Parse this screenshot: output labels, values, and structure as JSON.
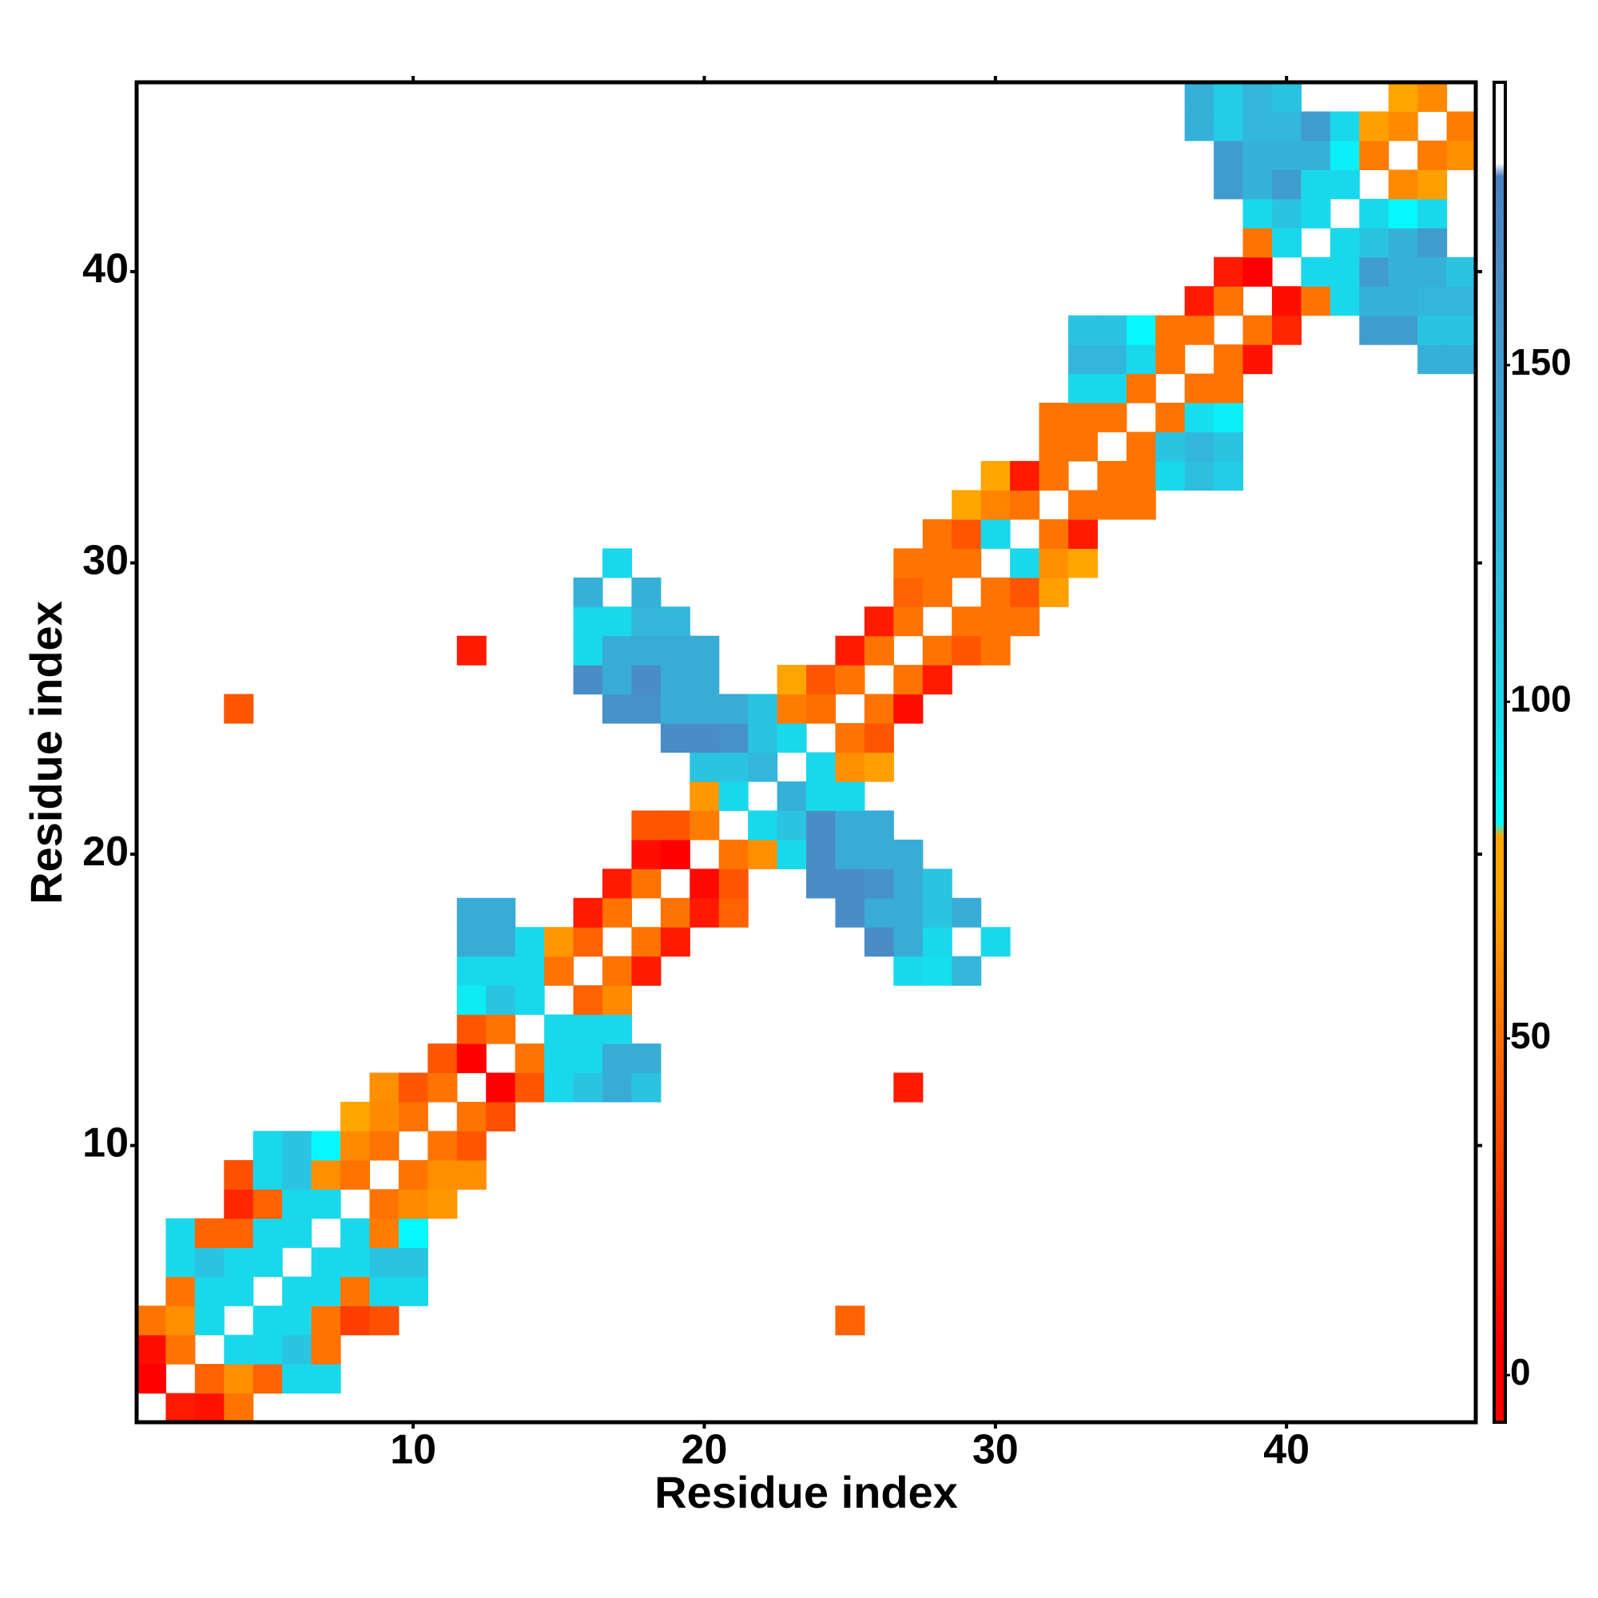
{
  "chart_data": {
    "type": "heatmap",
    "xlabel": "Residue index",
    "ylabel": "Residue index",
    "xlim": [
      0.5,
      46.5
    ],
    "ylim": [
      0.5,
      46.5
    ],
    "xticks": [
      10,
      20,
      30,
      40
    ],
    "yticks": [
      10,
      20,
      30,
      40
    ],
    "colorbar_lim": [
      -7,
      192
    ],
    "colorbar_ticks": [
      0,
      50,
      100,
      150
    ],
    "colorscale": [
      [
        -7,
        "#ff0000"
      ],
      [
        5,
        "#ff0000"
      ],
      [
        15,
        "#ff1a00"
      ],
      [
        40,
        "#ff5500"
      ],
      [
        52,
        "#ff7400"
      ],
      [
        70,
        "#ffa500"
      ],
      [
        80,
        "#ffa500"
      ],
      [
        82,
        "#00ffff"
      ],
      [
        98,
        "#1ad8eb"
      ],
      [
        112,
        "#2ac4e2"
      ],
      [
        135,
        "#38acd6"
      ],
      [
        165,
        "#4a8cc6"
      ],
      [
        178,
        "#4a7fbf"
      ],
      [
        180,
        "#ffffff"
      ],
      [
        192,
        "#ffffff"
      ]
    ],
    "cells": [
      [
        2,
        1,
        15
      ],
      [
        3,
        1,
        12
      ],
      [
        4,
        1,
        52
      ],
      [
        1,
        2,
        5
      ],
      [
        3,
        2,
        45
      ],
      [
        4,
        2,
        62
      ],
      [
        5,
        2,
        45
      ],
      [
        6,
        2,
        98
      ],
      [
        7,
        2,
        98
      ],
      [
        1,
        3,
        10
      ],
      [
        2,
        3,
        52
      ],
      [
        4,
        3,
        98
      ],
      [
        5,
        3,
        98
      ],
      [
        6,
        3,
        112
      ],
      [
        7,
        3,
        52
      ],
      [
        1,
        4,
        52
      ],
      [
        2,
        4,
        62
      ],
      [
        3,
        4,
        98
      ],
      [
        5,
        4,
        98
      ],
      [
        6,
        4,
        98
      ],
      [
        7,
        4,
        52
      ],
      [
        8,
        4,
        30
      ],
      [
        9,
        4,
        38
      ],
      [
        25,
        4,
        45
      ],
      [
        2,
        5,
        52
      ],
      [
        3,
        5,
        98
      ],
      [
        4,
        5,
        98
      ],
      [
        6,
        5,
        98
      ],
      [
        7,
        5,
        98
      ],
      [
        8,
        5,
        52
      ],
      [
        9,
        5,
        98
      ],
      [
        10,
        5,
        98
      ],
      [
        2,
        6,
        98
      ],
      [
        3,
        6,
        112
      ],
      [
        4,
        6,
        98
      ],
      [
        5,
        6,
        98
      ],
      [
        7,
        6,
        98
      ],
      [
        8,
        6,
        98
      ],
      [
        9,
        6,
        112
      ],
      [
        10,
        6,
        112
      ],
      [
        2,
        7,
        98
      ],
      [
        3,
        7,
        45
      ],
      [
        4,
        7,
        45
      ],
      [
        5,
        7,
        98
      ],
      [
        6,
        7,
        98
      ],
      [
        8,
        7,
        98
      ],
      [
        9,
        7,
        55
      ],
      [
        10,
        7,
        85
      ],
      [
        4,
        8,
        20
      ],
      [
        5,
        8,
        45
      ],
      [
        6,
        8,
        98
      ],
      [
        7,
        8,
        98
      ],
      [
        9,
        8,
        52
      ],
      [
        10,
        8,
        60
      ],
      [
        11,
        8,
        65
      ],
      [
        4,
        9,
        38
      ],
      [
        5,
        9,
        98
      ],
      [
        6,
        9,
        112
      ],
      [
        7,
        9,
        62
      ],
      [
        8,
        9,
        52
      ],
      [
        10,
        9,
        52
      ],
      [
        11,
        9,
        62
      ],
      [
        12,
        9,
        62
      ],
      [
        5,
        10,
        98
      ],
      [
        6,
        10,
        112
      ],
      [
        7,
        10,
        85
      ],
      [
        8,
        10,
        60
      ],
      [
        9,
        10,
        52
      ],
      [
        11,
        10,
        52
      ],
      [
        12,
        10,
        40
      ],
      [
        8,
        11,
        70
      ],
      [
        9,
        11,
        60
      ],
      [
        10,
        11,
        52
      ],
      [
        12,
        11,
        52
      ],
      [
        13,
        11,
        38
      ],
      [
        9,
        12,
        62
      ],
      [
        10,
        12,
        40
      ],
      [
        11,
        12,
        52
      ],
      [
        13,
        12,
        5
      ],
      [
        14,
        12,
        40
      ],
      [
        15,
        12,
        98
      ],
      [
        16,
        12,
        112
      ],
      [
        17,
        12,
        135
      ],
      [
        18,
        12,
        112
      ],
      [
        27,
        12,
        15
      ],
      [
        11,
        13,
        40
      ],
      [
        12,
        13,
        5
      ],
      [
        14,
        13,
        52
      ],
      [
        15,
        13,
        98
      ],
      [
        16,
        13,
        98
      ],
      [
        17,
        13,
        135
      ],
      [
        18,
        13,
        135
      ],
      [
        12,
        14,
        40
      ],
      [
        13,
        14,
        52
      ],
      [
        15,
        14,
        98
      ],
      [
        16,
        14,
        98
      ],
      [
        17,
        14,
        98
      ],
      [
        12,
        15,
        90
      ],
      [
        13,
        15,
        112
      ],
      [
        14,
        15,
        98
      ],
      [
        16,
        15,
        45
      ],
      [
        17,
        15,
        60
      ],
      [
        12,
        16,
        98
      ],
      [
        13,
        16,
        98
      ],
      [
        14,
        16,
        98
      ],
      [
        15,
        16,
        52
      ],
      [
        17,
        16,
        52
      ],
      [
        18,
        16,
        15
      ],
      [
        27,
        16,
        98
      ],
      [
        28,
        16,
        95
      ],
      [
        29,
        16,
        125
      ],
      [
        12,
        17,
        135
      ],
      [
        13,
        17,
        135
      ],
      [
        14,
        17,
        98
      ],
      [
        15,
        17,
        65
      ],
      [
        16,
        17,
        45
      ],
      [
        18,
        17,
        52
      ],
      [
        19,
        17,
        15
      ],
      [
        26,
        17,
        165
      ],
      [
        27,
        17,
        135
      ],
      [
        28,
        17,
        98
      ],
      [
        30,
        17,
        98
      ],
      [
        12,
        18,
        135
      ],
      [
        13,
        18,
        135
      ],
      [
        16,
        18,
        15
      ],
      [
        17,
        18,
        52
      ],
      [
        19,
        18,
        52
      ],
      [
        20,
        18,
        15
      ],
      [
        21,
        18,
        45
      ],
      [
        25,
        18,
        165
      ],
      [
        26,
        18,
        135
      ],
      [
        27,
        18,
        135
      ],
      [
        28,
        18,
        112
      ],
      [
        29,
        18,
        135
      ],
      [
        17,
        19,
        15
      ],
      [
        18,
        19,
        52
      ],
      [
        20,
        19,
        8
      ],
      [
        21,
        19,
        40
      ],
      [
        24,
        19,
        165
      ],
      [
        25,
        19,
        165
      ],
      [
        26,
        19,
        160
      ],
      [
        27,
        19,
        135
      ],
      [
        28,
        19,
        112
      ],
      [
        18,
        20,
        10
      ],
      [
        19,
        20,
        5
      ],
      [
        21,
        20,
        52
      ],
      [
        22,
        20,
        62
      ],
      [
        23,
        20,
        98
      ],
      [
        24,
        20,
        165
      ],
      [
        25,
        20,
        135
      ],
      [
        26,
        20,
        135
      ],
      [
        27,
        20,
        135
      ],
      [
        18,
        21,
        40
      ],
      [
        19,
        21,
        40
      ],
      [
        20,
        21,
        55
      ],
      [
        22,
        21,
        98
      ],
      [
        23,
        21,
        112
      ],
      [
        24,
        21,
        165
      ],
      [
        25,
        21,
        135
      ],
      [
        26,
        21,
        135
      ],
      [
        20,
        22,
        65
      ],
      [
        21,
        22,
        98
      ],
      [
        23,
        22,
        130
      ],
      [
        24,
        22,
        98
      ],
      [
        25,
        22,
        98
      ],
      [
        20,
        23,
        112
      ],
      [
        21,
        23,
        112
      ],
      [
        22,
        23,
        125
      ],
      [
        24,
        23,
        98
      ],
      [
        25,
        23,
        62
      ],
      [
        26,
        23,
        68
      ],
      [
        19,
        24,
        165
      ],
      [
        20,
        24,
        165
      ],
      [
        21,
        24,
        160
      ],
      [
        22,
        24,
        112
      ],
      [
        23,
        24,
        98
      ],
      [
        25,
        24,
        52
      ],
      [
        26,
        24,
        40
      ],
      [
        4,
        25,
        40
      ],
      [
        17,
        25,
        160
      ],
      [
        18,
        25,
        160
      ],
      [
        19,
        25,
        135
      ],
      [
        20,
        25,
        135
      ],
      [
        21,
        25,
        135
      ],
      [
        22,
        25,
        112
      ],
      [
        23,
        25,
        55
      ],
      [
        24,
        25,
        50
      ],
      [
        26,
        25,
        52
      ],
      [
        27,
        25,
        10
      ],
      [
        16,
        26,
        165
      ],
      [
        17,
        26,
        135
      ],
      [
        18,
        26,
        165
      ],
      [
        19,
        26,
        135
      ],
      [
        20,
        26,
        135
      ],
      [
        23,
        26,
        70
      ],
      [
        24,
        26,
        40
      ],
      [
        25,
        26,
        52
      ],
      [
        27,
        26,
        52
      ],
      [
        28,
        26,
        15
      ],
      [
        12,
        27,
        15
      ],
      [
        16,
        27,
        98
      ],
      [
        17,
        27,
        135
      ],
      [
        18,
        27,
        135
      ],
      [
        19,
        27,
        135
      ],
      [
        20,
        27,
        135
      ],
      [
        25,
        27,
        15
      ],
      [
        26,
        27,
        52
      ],
      [
        28,
        27,
        52
      ],
      [
        29,
        27,
        40
      ],
      [
        30,
        27,
        52
      ],
      [
        16,
        28,
        98
      ],
      [
        17,
        28,
        98
      ],
      [
        18,
        28,
        125
      ],
      [
        19,
        28,
        125
      ],
      [
        26,
        28,
        15
      ],
      [
        27,
        28,
        52
      ],
      [
        29,
        28,
        52
      ],
      [
        30,
        28,
        52
      ],
      [
        31,
        28,
        52
      ],
      [
        16,
        29,
        130
      ],
      [
        18,
        29,
        130
      ],
      [
        27,
        29,
        45
      ],
      [
        28,
        29,
        52
      ],
      [
        30,
        29,
        52
      ],
      [
        31,
        29,
        40
      ],
      [
        32,
        29,
        68
      ],
      [
        17,
        30,
        98
      ],
      [
        27,
        30,
        52
      ],
      [
        28,
        30,
        52
      ],
      [
        29,
        30,
        52
      ],
      [
        31,
        30,
        98
      ],
      [
        32,
        30,
        62
      ],
      [
        33,
        30,
        70
      ],
      [
        28,
        31,
        52
      ],
      [
        29,
        31,
        40
      ],
      [
        30,
        31,
        98
      ],
      [
        32,
        31,
        52
      ],
      [
        33,
        31,
        15
      ],
      [
        29,
        32,
        70
      ],
      [
        30,
        32,
        58
      ],
      [
        31,
        32,
        52
      ],
      [
        33,
        32,
        52
      ],
      [
        34,
        32,
        52
      ],
      [
        35,
        32,
        52
      ],
      [
        30,
        33,
        70
      ],
      [
        31,
        33,
        15
      ],
      [
        32,
        33,
        52
      ],
      [
        34,
        33,
        52
      ],
      [
        35,
        33,
        52
      ],
      [
        36,
        33,
        98
      ],
      [
        37,
        33,
        118
      ],
      [
        38,
        33,
        105
      ],
      [
        32,
        34,
        52
      ],
      [
        33,
        34,
        52
      ],
      [
        35,
        34,
        52
      ],
      [
        36,
        34,
        112
      ],
      [
        37,
        34,
        125
      ],
      [
        38,
        34,
        112
      ],
      [
        32,
        35,
        52
      ],
      [
        33,
        35,
        52
      ],
      [
        34,
        35,
        52
      ],
      [
        36,
        35,
        52
      ],
      [
        37,
        35,
        95
      ],
      [
        38,
        35,
        88
      ],
      [
        33,
        36,
        98
      ],
      [
        34,
        36,
        98
      ],
      [
        35,
        36,
        52
      ],
      [
        37,
        36,
        52
      ],
      [
        38,
        36,
        52
      ],
      [
        33,
        37,
        125
      ],
      [
        34,
        37,
        125
      ],
      [
        35,
        37,
        98
      ],
      [
        36,
        37,
        52
      ],
      [
        38,
        37,
        52
      ],
      [
        39,
        37,
        12
      ],
      [
        45,
        37,
        130
      ],
      [
        46,
        37,
        130
      ],
      [
        33,
        38,
        112
      ],
      [
        34,
        38,
        112
      ],
      [
        35,
        38,
        85
      ],
      [
        36,
        38,
        52
      ],
      [
        37,
        38,
        52
      ],
      [
        39,
        38,
        52
      ],
      [
        40,
        38,
        20
      ],
      [
        43,
        38,
        150
      ],
      [
        44,
        38,
        150
      ],
      [
        45,
        38,
        112
      ],
      [
        46,
        38,
        112
      ],
      [
        37,
        39,
        15
      ],
      [
        38,
        39,
        52
      ],
      [
        40,
        39,
        10
      ],
      [
        41,
        39,
        52
      ],
      [
        42,
        39,
        98
      ],
      [
        43,
        39,
        130
      ],
      [
        44,
        39,
        130
      ],
      [
        45,
        39,
        125
      ],
      [
        46,
        39,
        125
      ],
      [
        38,
        40,
        15
      ],
      [
        39,
        40,
        5
      ],
      [
        41,
        40,
        98
      ],
      [
        42,
        40,
        98
      ],
      [
        43,
        40,
        150
      ],
      [
        44,
        40,
        130
      ],
      [
        45,
        40,
        130
      ],
      [
        46,
        40,
        112
      ],
      [
        39,
        41,
        52
      ],
      [
        40,
        41,
        98
      ],
      [
        42,
        41,
        98
      ],
      [
        43,
        41,
        112
      ],
      [
        44,
        41,
        130
      ],
      [
        45,
        41,
        150
      ],
      [
        39,
        42,
        98
      ],
      [
        40,
        42,
        112
      ],
      [
        41,
        42,
        98
      ],
      [
        43,
        42,
        98
      ],
      [
        44,
        42,
        85
      ],
      [
        45,
        42,
        98
      ],
      [
        38,
        43,
        150
      ],
      [
        39,
        43,
        130
      ],
      [
        40,
        43,
        150
      ],
      [
        41,
        43,
        98
      ],
      [
        42,
        43,
        98
      ],
      [
        44,
        43,
        60
      ],
      [
        45,
        43,
        68
      ],
      [
        38,
        44,
        150
      ],
      [
        39,
        44,
        130
      ],
      [
        40,
        44,
        130
      ],
      [
        41,
        44,
        130
      ],
      [
        42,
        44,
        88
      ],
      [
        43,
        44,
        55
      ],
      [
        45,
        44,
        55
      ],
      [
        46,
        44,
        62
      ],
      [
        37,
        45,
        130
      ],
      [
        38,
        45,
        105
      ],
      [
        39,
        45,
        125
      ],
      [
        40,
        45,
        125
      ],
      [
        41,
        45,
        150
      ],
      [
        42,
        45,
        98
      ],
      [
        43,
        45,
        68
      ],
      [
        44,
        45,
        60
      ],
      [
        46,
        45,
        55
      ],
      [
        37,
        46,
        130
      ],
      [
        38,
        46,
        105
      ],
      [
        39,
        46,
        125
      ],
      [
        40,
        46,
        112
      ],
      [
        44,
        46,
        70
      ],
      [
        45,
        46,
        60
      ]
    ]
  }
}
